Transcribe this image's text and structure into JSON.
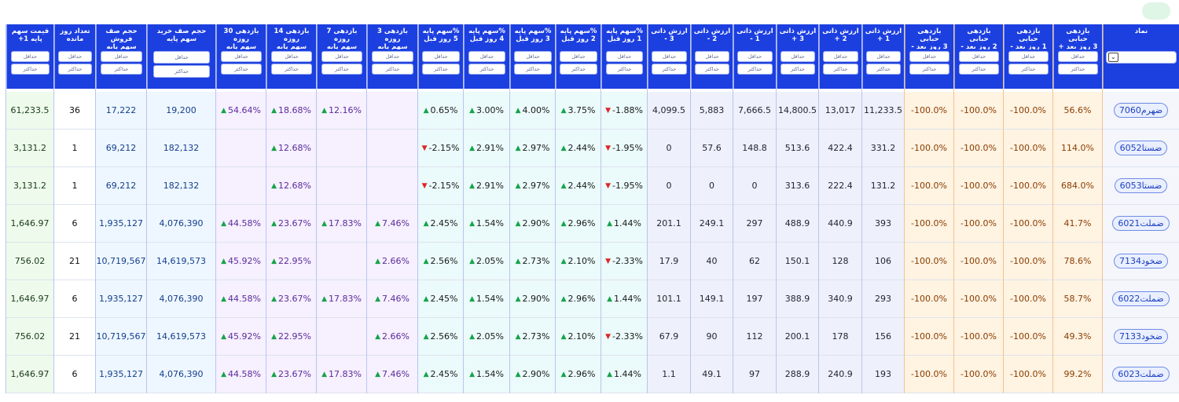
{
  "toolbar": {
    "top_button_label": ""
  },
  "filters": {
    "min_label": "حداقل",
    "max_label": "حداکثر"
  },
  "columns": [
    {
      "key": "name",
      "group": "name",
      "title": "نماد",
      "filter": "select",
      "width": 98
    },
    {
      "key": "bub3p",
      "group": "bub",
      "title": "بازدهی\nحبابی\n3 روز بعد +",
      "filter": "minmax",
      "width": 63
    },
    {
      "key": "bub1m",
      "group": "bub",
      "title": "بازدهی\nحبابی\n1 روز بعد -",
      "filter": "minmax",
      "width": 63
    },
    {
      "key": "bub2m",
      "group": "bub",
      "title": "بازدهی\nحبابی\n2 روز بعد -",
      "filter": "minmax",
      "width": 63
    },
    {
      "key": "bub3m",
      "group": "bub",
      "title": "بازدهی\nحبابی\n3 روز بعد -",
      "filter": "minmax",
      "width": 63
    },
    {
      "key": "iv1p",
      "group": "intr",
      "title": "ارزش ذاتی\n1 +",
      "filter": "minmax",
      "width": 54
    },
    {
      "key": "iv2p",
      "group": "intr",
      "title": "ارزش ذاتی\n2 +",
      "filter": "minmax",
      "width": 55
    },
    {
      "key": "iv3p",
      "group": "intr",
      "title": "ارزش ذاتی\n3 +",
      "filter": "minmax",
      "width": 54
    },
    {
      "key": "iv1m",
      "group": "intr",
      "title": "ارزش ذاتی\n1 -",
      "filter": "minmax",
      "width": 55
    },
    {
      "key": "iv2m",
      "group": "intr",
      "title": "ارزش ذاتی\n2 -",
      "filter": "minmax",
      "width": 54
    },
    {
      "key": "iv3m",
      "group": "intr",
      "title": "ارزش ذاتی\n3 -",
      "filter": "minmax",
      "width": 55
    },
    {
      "key": "ch1",
      "group": "chg",
      "title": "%سهم پایه\n1 روز قبل",
      "filter": "minmax",
      "width": 59
    },
    {
      "key": "ch2",
      "group": "chg",
      "title": "%سهم پایه\n2 روز قبل",
      "filter": "minmax",
      "width": 58
    },
    {
      "key": "ch3",
      "group": "chg",
      "title": "%سهم پایه\n3 روز قبل",
      "filter": "minmax",
      "width": 58
    },
    {
      "key": "ch4",
      "group": "chg",
      "title": "%سهم پایه\n4 روز قبل",
      "filter": "minmax",
      "width": 59
    },
    {
      "key": "ch5",
      "group": "chg",
      "title": "%سهم پایه\n5 روز قبل",
      "filter": "minmax",
      "width": 58
    },
    {
      "key": "r3",
      "group": "ret",
      "title": "بازدهی 3 روزه\nسهم پایه",
      "filter": "minmax",
      "width": 65
    },
    {
      "key": "r7",
      "group": "ret",
      "title": "بازدهی 7 روزه\nسهم پایه",
      "filter": "minmax",
      "width": 64
    },
    {
      "key": "r14",
      "group": "ret",
      "title": "بازدهی 14\nروزه\nسهم پایه",
      "filter": "minmax",
      "width": 64
    },
    {
      "key": "r30",
      "group": "ret",
      "title": "بازدهی 30\nروزه\nسهم پایه",
      "filter": "minmax",
      "width": 64
    },
    {
      "key": "buyq",
      "group": "que",
      "title": "حجم صف خرید\nسهم پایه",
      "filter": "minmax_lg",
      "width": 88
    },
    {
      "key": "sellq",
      "group": "que",
      "title": "حجم صف\nفروش\nسهم پایه",
      "filter": "minmax",
      "width": 65
    },
    {
      "key": "days",
      "group": "days",
      "title": "تعداد روز\nمانده",
      "filter": "minmax",
      "width": 53
    },
    {
      "key": "price",
      "group": "price",
      "title": "قیمت سهم\nپایه 1+",
      "filter": "minmax",
      "width": 61
    }
  ],
  "rows": [
    {
      "name": "ضهرم7060",
      "bub3p": "56.6%",
      "bub1m": "-100.0%",
      "bub2m": "-100.0%",
      "bub3m": "-100.0%",
      "iv1p": "11,233.5",
      "iv2p": "13,017",
      "iv3p": "14,800.5",
      "iv1m": "7,666.5",
      "iv2m": "5,883",
      "iv3m": "4,099.5",
      "ch1": {
        "dir": "down",
        "v": "-1.88%"
      },
      "ch2": {
        "dir": "up",
        "v": "3.75%"
      },
      "ch3": {
        "dir": "up",
        "v": "4.00%"
      },
      "ch4": {
        "dir": "up",
        "v": "3.00%"
      },
      "ch5": {
        "dir": "up",
        "v": "0.65%"
      },
      "r3": {
        "dir": "",
        "v": ""
      },
      "r7": {
        "dir": "up",
        "v": "12.16%"
      },
      "r14": {
        "dir": "up",
        "v": "18.68%"
      },
      "r30": {
        "dir": "up",
        "v": "54.64%"
      },
      "buyq": "19,200",
      "sellq": "17,222",
      "days": "36",
      "price": "61,233.5"
    },
    {
      "name": "ضستا6052",
      "bub3p": "114.0%",
      "bub1m": "-100.0%",
      "bub2m": "-100.0%",
      "bub3m": "-100.0%",
      "iv1p": "331.2",
      "iv2p": "422.4",
      "iv3p": "513.6",
      "iv1m": "148.8",
      "iv2m": "57.6",
      "iv3m": "0",
      "ch1": {
        "dir": "down",
        "v": "-1.95%"
      },
      "ch2": {
        "dir": "up",
        "v": "2.44%"
      },
      "ch3": {
        "dir": "up",
        "v": "2.97%"
      },
      "ch4": {
        "dir": "up",
        "v": "2.91%"
      },
      "ch5": {
        "dir": "down",
        "v": "-2.15%"
      },
      "r3": {
        "dir": "",
        "v": ""
      },
      "r7": {
        "dir": "",
        "v": ""
      },
      "r14": {
        "dir": "up",
        "v": "12.68%"
      },
      "r30": {
        "dir": "",
        "v": ""
      },
      "buyq": "182,132",
      "sellq": "69,212",
      "days": "1",
      "price": "3,131.2"
    },
    {
      "name": "ضستا6053",
      "bub3p": "684.0%",
      "bub1m": "-100.0%",
      "bub2m": "-100.0%",
      "bub3m": "-100.0%",
      "iv1p": "131.2",
      "iv2p": "222.4",
      "iv3p": "313.6",
      "iv1m": "0",
      "iv2m": "0",
      "iv3m": "0",
      "ch1": {
        "dir": "down",
        "v": "-1.95%"
      },
      "ch2": {
        "dir": "up",
        "v": "2.44%"
      },
      "ch3": {
        "dir": "up",
        "v": "2.97%"
      },
      "ch4": {
        "dir": "up",
        "v": "2.91%"
      },
      "ch5": {
        "dir": "down",
        "v": "-2.15%"
      },
      "r3": {
        "dir": "",
        "v": ""
      },
      "r7": {
        "dir": "",
        "v": ""
      },
      "r14": {
        "dir": "up",
        "v": "12.68%"
      },
      "r30": {
        "dir": "",
        "v": ""
      },
      "buyq": "182,132",
      "sellq": "69,212",
      "days": "1",
      "price": "3,131.2"
    },
    {
      "name": "ضملت6021",
      "bub3p": "41.7%",
      "bub1m": "-100.0%",
      "bub2m": "-100.0%",
      "bub3m": "-100.0%",
      "iv1p": "393",
      "iv2p": "440.9",
      "iv3p": "488.9",
      "iv1m": "297",
      "iv2m": "249.1",
      "iv3m": "201.1",
      "ch1": {
        "dir": "up",
        "v": "1.44%"
      },
      "ch2": {
        "dir": "up",
        "v": "2.96%"
      },
      "ch3": {
        "dir": "up",
        "v": "2.90%"
      },
      "ch4": {
        "dir": "up",
        "v": "1.54%"
      },
      "ch5": {
        "dir": "up",
        "v": "2.45%"
      },
      "r3": {
        "dir": "up",
        "v": "7.46%"
      },
      "r7": {
        "dir": "up",
        "v": "17.83%"
      },
      "r14": {
        "dir": "up",
        "v": "23.67%"
      },
      "r30": {
        "dir": "up",
        "v": "44.58%"
      },
      "buyq": "4,076,390",
      "sellq": "1,935,127",
      "days": "6",
      "price": "1,646.97"
    },
    {
      "name": "ضخود7134",
      "bub3p": "78.6%",
      "bub1m": "-100.0%",
      "bub2m": "-100.0%",
      "bub3m": "-100.0%",
      "iv1p": "106",
      "iv2p": "128",
      "iv3p": "150.1",
      "iv1m": "62",
      "iv2m": "40",
      "iv3m": "17.9",
      "ch1": {
        "dir": "down",
        "v": "-2.33%"
      },
      "ch2": {
        "dir": "up",
        "v": "2.10%"
      },
      "ch3": {
        "dir": "up",
        "v": "2.73%"
      },
      "ch4": {
        "dir": "up",
        "v": "2.05%"
      },
      "ch5": {
        "dir": "up",
        "v": "2.56%"
      },
      "r3": {
        "dir": "up",
        "v": "2.66%"
      },
      "r7": {
        "dir": "",
        "v": ""
      },
      "r14": {
        "dir": "up",
        "v": "22.95%"
      },
      "r30": {
        "dir": "up",
        "v": "45.92%"
      },
      "buyq": "14,619,573",
      "sellq": "10,719,567",
      "days": "21",
      "price": "756.02"
    },
    {
      "name": "ضملت6022",
      "bub3p": "58.7%",
      "bub1m": "-100.0%",
      "bub2m": "-100.0%",
      "bub3m": "-100.0%",
      "iv1p": "293",
      "iv2p": "340.9",
      "iv3p": "388.9",
      "iv1m": "197",
      "iv2m": "149.1",
      "iv3m": "101.1",
      "ch1": {
        "dir": "up",
        "v": "1.44%"
      },
      "ch2": {
        "dir": "up",
        "v": "2.96%"
      },
      "ch3": {
        "dir": "up",
        "v": "2.90%"
      },
      "ch4": {
        "dir": "up",
        "v": "1.54%"
      },
      "ch5": {
        "dir": "up",
        "v": "2.45%"
      },
      "r3": {
        "dir": "up",
        "v": "7.46%"
      },
      "r7": {
        "dir": "up",
        "v": "17.83%"
      },
      "r14": {
        "dir": "up",
        "v": "23.67%"
      },
      "r30": {
        "dir": "up",
        "v": "44.58%"
      },
      "buyq": "4,076,390",
      "sellq": "1,935,127",
      "days": "6",
      "price": "1,646.97"
    },
    {
      "name": "ضخود7133",
      "bub3p": "49.3%",
      "bub1m": "-100.0%",
      "bub2m": "-100.0%",
      "bub3m": "-100.0%",
      "iv1p": "156",
      "iv2p": "178",
      "iv3p": "200.1",
      "iv1m": "112",
      "iv2m": "90",
      "iv3m": "67.9",
      "ch1": {
        "dir": "down",
        "v": "-2.33%"
      },
      "ch2": {
        "dir": "up",
        "v": "2.10%"
      },
      "ch3": {
        "dir": "up",
        "v": "2.73%"
      },
      "ch4": {
        "dir": "up",
        "v": "2.05%"
      },
      "ch5": {
        "dir": "up",
        "v": "2.56%"
      },
      "r3": {
        "dir": "up",
        "v": "2.66%"
      },
      "r7": {
        "dir": "",
        "v": ""
      },
      "r14": {
        "dir": "up",
        "v": "22.95%"
      },
      "r30": {
        "dir": "up",
        "v": "45.92%"
      },
      "buyq": "14,619,573",
      "sellq": "10,719,567",
      "days": "21",
      "price": "756.02"
    },
    {
      "name": "ضملت6023",
      "bub3p": "99.2%",
      "bub1m": "-100.0%",
      "bub2m": "-100.0%",
      "bub3m": "-100.0%",
      "iv1p": "193",
      "iv2p": "240.9",
      "iv3p": "288.9",
      "iv1m": "97",
      "iv2m": "49.1",
      "iv3m": "1.1",
      "ch1": {
        "dir": "up",
        "v": "1.44%"
      },
      "ch2": {
        "dir": "up",
        "v": "2.96%"
      },
      "ch3": {
        "dir": "up",
        "v": "2.90%"
      },
      "ch4": {
        "dir": "up",
        "v": "1.54%"
      },
      "ch5": {
        "dir": "up",
        "v": "2.45%"
      },
      "r3": {
        "dir": "up",
        "v": "7.46%"
      },
      "r7": {
        "dir": "up",
        "v": "17.83%"
      },
      "r14": {
        "dir": "up",
        "v": "23.67%"
      },
      "r30": {
        "dir": "up",
        "v": "44.58%"
      },
      "buyq": "4,076,390",
      "sellq": "1,935,127",
      "days": "6",
      "price": "1,646.97"
    }
  ],
  "icons": {
    "select_chevron": "chevron-down-icon",
    "up_arrow": "triangle-up-icon",
    "down_arrow": "triangle-down-icon"
  },
  "colors": {
    "header_bg": "#1c3fe0",
    "up": "#16a34a",
    "down": "#dc2626"
  }
}
